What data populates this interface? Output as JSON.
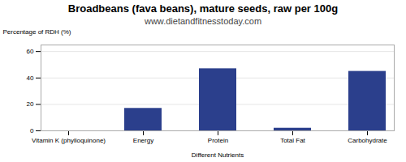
{
  "chart_data": {
    "type": "bar",
    "title": "Broadbeans (fava beans), mature seeds, raw per 100g",
    "subtitle": "www.dietandfitnesstoday.com",
    "xlabel": "Different Nutrients",
    "ylabel": "Percentage of RDH (%)",
    "categories": [
      "Vitamin K (phylloquinone)",
      "Energy",
      "Protein",
      "Total Fat",
      "Carbohydrate"
    ],
    "values": [
      0,
      17,
      47,
      2,
      45
    ],
    "color": "#2b3f8c",
    "ylim": [
      0,
      65
    ],
    "yticks": [
      0,
      20,
      40,
      60
    ],
    "grid": true
  }
}
